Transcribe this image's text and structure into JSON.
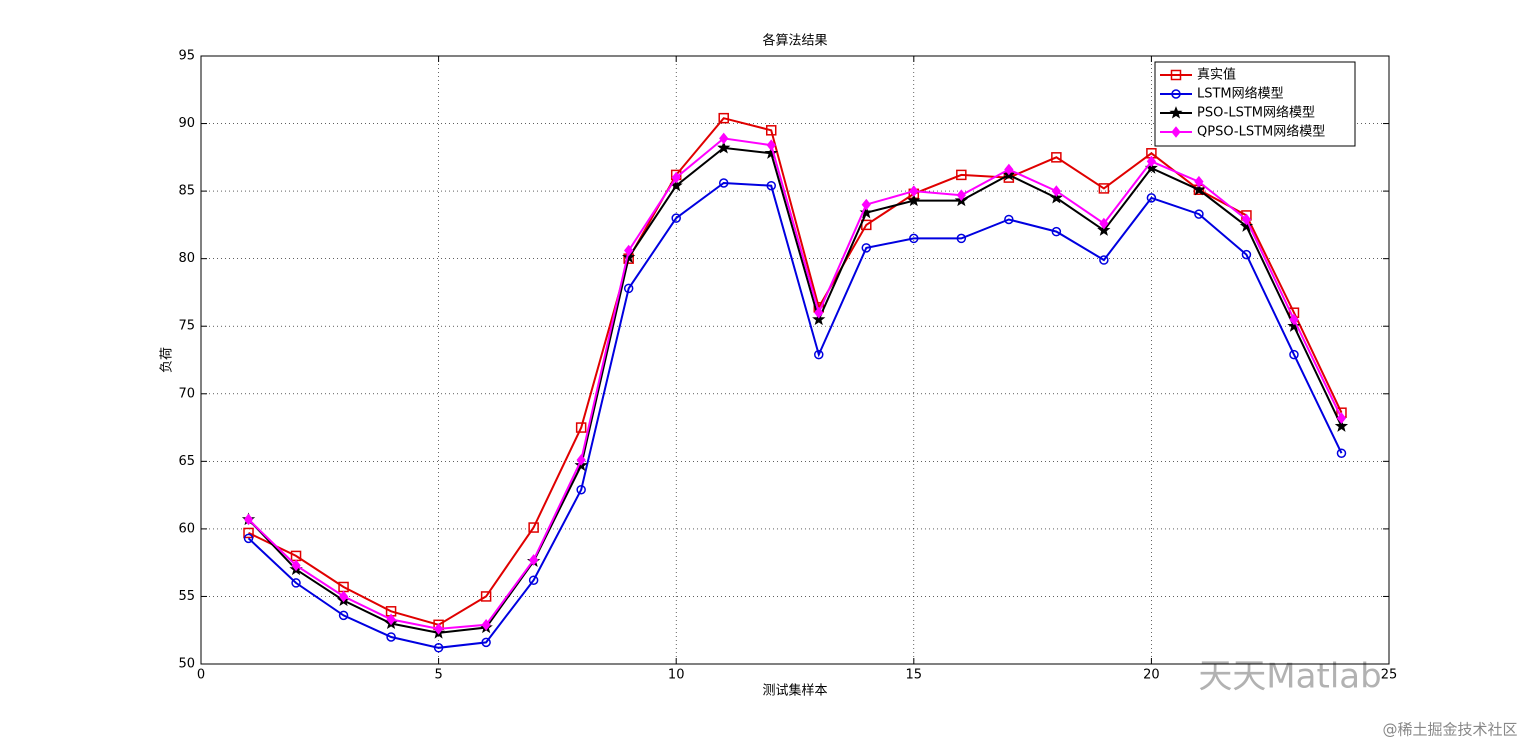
{
  "chart_data": {
    "type": "line",
    "title": "各算法结果",
    "x_label": "测试集样本",
    "y_label": "负荷",
    "x": [
      1,
      2,
      3,
      4,
      5,
      6,
      7,
      8,
      9,
      10,
      11,
      12,
      13,
      14,
      15,
      16,
      17,
      18,
      19,
      20,
      21,
      22,
      23,
      24
    ],
    "series": [
      {
        "name": "真实值",
        "color": "#e00000",
        "marker": "square",
        "values": [
          59.7,
          58.0,
          55.7,
          53.9,
          52.9,
          55.0,
          60.1,
          67.5,
          80.0,
          86.2,
          90.4,
          89.5,
          76.4,
          82.5,
          84.8,
          86.2,
          86.0,
          87.5,
          85.2,
          87.8,
          85.1,
          83.2,
          76.0,
          68.6
        ]
      },
      {
        "name": "LSTM网络模型",
        "color": "#0000e0",
        "marker": "circle",
        "values": [
          59.3,
          56.0,
          53.6,
          52.0,
          51.2,
          51.6,
          56.2,
          62.9,
          77.8,
          83.0,
          85.6,
          85.4,
          72.9,
          80.8,
          81.5,
          81.5,
          82.9,
          82.0,
          79.9,
          84.5,
          83.3,
          80.3,
          72.9,
          65.6
        ]
      },
      {
        "name": "PSO-LSTM网络模型",
        "color": "#000000",
        "marker": "star",
        "values": [
          60.7,
          57.0,
          54.7,
          53.0,
          52.3,
          52.7,
          57.6,
          64.7,
          80.1,
          85.4,
          88.2,
          87.8,
          75.5,
          83.4,
          84.3,
          84.3,
          86.2,
          84.5,
          82.1,
          86.7,
          85.1,
          82.4,
          75.0,
          67.6
        ]
      },
      {
        "name": "QPSO-LSTM网络模型",
        "color": "#ff00ff",
        "marker": "diamond",
        "values": [
          60.7,
          57.3,
          55.0,
          53.3,
          52.6,
          52.9,
          57.7,
          65.1,
          80.6,
          86.0,
          88.9,
          88.4,
          76.0,
          84.0,
          85.0,
          84.7,
          86.6,
          85.0,
          82.6,
          87.2,
          85.7,
          82.9,
          75.5,
          68.2
        ]
      }
    ],
    "xlim": [
      0,
      25
    ],
    "xticks": [
      0,
      5,
      10,
      15,
      20,
      25
    ],
    "ylim": [
      50,
      95
    ],
    "yticks": [
      50,
      55,
      60,
      65,
      70,
      75,
      80,
      85,
      90,
      95
    ],
    "grid": true,
    "legend": "northeast"
  },
  "watermarks": [
    "天天Matlab",
    "@稀土掘金技术社区"
  ]
}
